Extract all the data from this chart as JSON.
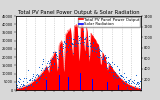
{
  "title": "Total PV Panel Power Output & Solar Radiation",
  "bg_color": "#d8d8d8",
  "plot_bg": "#ffffff",
  "n_points": 288,
  "red_peak": 144,
  "red_sigma": 52,
  "red_max": 40000,
  "red_color": "#ff0000",
  "blue_color": "#0000ff",
  "blue_dot_color": "#0055cc",
  "grid_color": "#bbbbbb",
  "title_fontsize": 3.8,
  "tick_fontsize": 2.5,
  "left_ylim": [
    0,
    45000
  ],
  "right_ylim": [
    0,
    1400
  ],
  "left_yticks": [
    0,
    5000,
    10000,
    15000,
    20000,
    25000,
    30000,
    35000,
    40000,
    45000
  ],
  "right_yticks": [
    200,
    400,
    600,
    800,
    1000,
    1200,
    1400
  ],
  "n_vgrid": 13,
  "legend_red_label": "Total PV Panel Power Output",
  "legend_blue_label": "Solar Radiation",
  "legend_fontsize": 2.8,
  "spike_positions": [
    75,
    95,
    110,
    130,
    145,
    158,
    168,
    195,
    210
  ],
  "spike_depths": [
    0.35,
    0.55,
    0.65,
    0.45,
    0.55,
    0.4,
    0.5,
    0.38,
    0.3
  ],
  "blue_bar_positions": [
    70,
    100,
    120,
    148,
    175,
    210,
    235
  ],
  "blue_bar_heights": [
    180,
    280,
    240,
    320,
    200,
    150,
    100
  ],
  "blue_peak": 144,
  "blue_sigma": 60,
  "blue_max": 950,
  "blue_noise_std": 80
}
